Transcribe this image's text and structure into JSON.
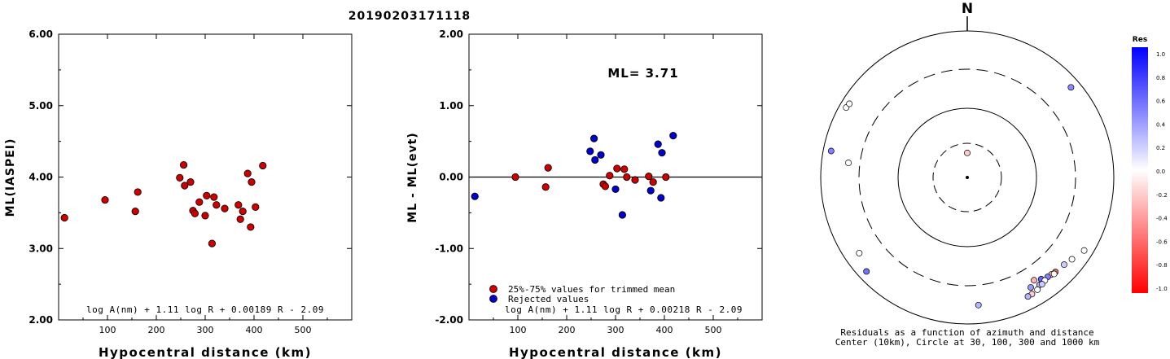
{
  "title": "20190203171118",
  "chart_data": [
    {
      "type": "scatter",
      "xlabel": "Hypocentral distance (km)",
      "ylabel": "ML(IASPEI)",
      "xlim": [
        0,
        600
      ],
      "ylim": [
        2.0,
        6.0
      ],
      "xticks": [
        "100",
        "200",
        "300",
        "400",
        "500"
      ],
      "yticks": [
        "2.00",
        "3.00",
        "4.00",
        "5.00",
        "6.00"
      ],
      "formula": "log A(nm) + 1.11 log R + 0.00189 R - 2.09",
      "marker_color": "#cc0000",
      "points": [
        [
          12,
          3.43
        ],
        [
          95,
          3.68
        ],
        [
          157,
          3.52
        ],
        [
          162,
          3.79
        ],
        [
          248,
          3.99
        ],
        [
          256,
          4.17
        ],
        [
          258,
          3.88
        ],
        [
          270,
          3.93
        ],
        [
          275,
          3.53
        ],
        [
          279,
          3.49
        ],
        [
          288,
          3.65
        ],
        [
          300,
          3.46
        ],
        [
          303,
          3.74
        ],
        [
          314,
          3.07
        ],
        [
          318,
          3.72
        ],
        [
          323,
          3.61
        ],
        [
          340,
          3.56
        ],
        [
          368,
          3.61
        ],
        [
          372,
          3.41
        ],
        [
          377,
          3.52
        ],
        [
          387,
          4.05
        ],
        [
          393,
          3.3
        ],
        [
          395,
          3.93
        ],
        [
          403,
          3.58
        ],
        [
          418,
          4.16
        ]
      ]
    },
    {
      "type": "scatter",
      "xlabel": "Hypocentral distance (km)",
      "ylabel": "ML - ML(evt)",
      "xlim": [
        0,
        600
      ],
      "ylim": [
        -2.0,
        2.0
      ],
      "xticks": [
        "100",
        "200",
        "300",
        "400",
        "500"
      ],
      "yticks": [
        "-2.00",
        "-1.00",
        "0.00",
        "1.00",
        "2.00"
      ],
      "annotation": "ML= 3.71",
      "formula": "log A(nm) + 1.11 log R + 0.00218 R - 2.09",
      "legend": [
        {
          "label": "25%-75% values for trimmed mean",
          "color": "#cc0000"
        },
        {
          "label": "Rejected values",
          "color": "#0000cc"
        }
      ],
      "series": [
        {
          "name": "25%-75% values for trimmed mean",
          "color": "#cc0000",
          "points": [
            [
              95,
              0.0
            ],
            [
              157,
              -0.14
            ],
            [
              162,
              0.13
            ],
            [
              275,
              -0.1
            ],
            [
              279,
              -0.13
            ],
            [
              288,
              0.02
            ],
            [
              303,
              0.12
            ],
            [
              318,
              0.11
            ],
            [
              323,
              0.0
            ],
            [
              340,
              -0.04
            ],
            [
              368,
              0.01
            ],
            [
              377,
              -0.07
            ],
            [
              403,
              0.0
            ]
          ]
        },
        {
          "name": "Rejected values",
          "color": "#0000cc",
          "points": [
            [
              12,
              -0.27
            ],
            [
              248,
              0.36
            ],
            [
              256,
              0.54
            ],
            [
              258,
              0.24
            ],
            [
              270,
              0.31
            ],
            [
              300,
              -0.17
            ],
            [
              314,
              -0.53
            ],
            [
              372,
              -0.19
            ],
            [
              387,
              0.46
            ],
            [
              393,
              -0.29
            ],
            [
              395,
              0.34
            ],
            [
              418,
              0.58
            ]
          ]
        }
      ]
    },
    {
      "type": "scatter",
      "subtype": "polar",
      "north_label": "N",
      "caption_line1": "Residuals as a function of azimuth and distance",
      "caption_line2": "Center (10km), Circle at 30, 100, 300 and 1000 km",
      "rings_km": [
        30,
        100,
        300,
        1000
      ],
      "colorbar": {
        "title": "Res",
        "ticks": [
          "1.0",
          "0.8",
          "0.6",
          "0.4",
          "0.2",
          "0.0",
          "-0.2",
          "-0.4",
          "-0.6",
          "-0.8",
          "-1.0"
        ],
        "max_color": "#0000ff",
        "zero_color": "#ffffff",
        "min_color": "#ff0000"
      },
      "points": [
        {
          "azimuth_deg": 0,
          "distance_km": 22,
          "residual": -0.2
        },
        {
          "azimuth_deg": 277,
          "distance_km": 430,
          "residual": 0.0
        },
        {
          "azimuth_deg": 281,
          "distance_km": 780,
          "residual": 0.5
        },
        {
          "azimuth_deg": 300,
          "distance_km": 810,
          "residual": 0.0
        },
        {
          "azimuth_deg": 302,
          "distance_km": 790,
          "residual": 0.0
        },
        {
          "azimuth_deg": 49,
          "distance_km": 750,
          "residual": 0.45
        },
        {
          "azimuth_deg": 235,
          "distance_km": 630,
          "residual": 0.0
        },
        {
          "azimuth_deg": 227,
          "distance_km": 760,
          "residual": 0.55
        },
        {
          "azimuth_deg": 122,
          "distance_km": 760,
          "residual": 0.0
        },
        {
          "azimuth_deg": 128,
          "distance_km": 650,
          "residual": 0.0
        },
        {
          "azimuth_deg": 132,
          "distance_km": 600,
          "residual": 0.2
        },
        {
          "azimuth_deg": 137,
          "distance_km": 580,
          "residual": -0.6
        },
        {
          "azimuth_deg": 139,
          "distance_km": 565,
          "residual": -0.3
        },
        {
          "azimuth_deg": 141,
          "distance_km": 555,
          "residual": 0.5
        },
        {
          "azimuth_deg": 144,
          "distance_km": 520,
          "residual": 0.6
        },
        {
          "azimuth_deg": 146,
          "distance_km": 585,
          "residual": 0.3
        },
        {
          "azimuth_deg": 148,
          "distance_km": 640,
          "residual": 0.0
        },
        {
          "azimuth_deg": 151,
          "distance_km": 660,
          "residual": -0.2
        },
        {
          "azimuth_deg": 153,
          "distance_km": 665,
          "residual": 0.3
        },
        {
          "azimuth_deg": 150,
          "distance_km": 540,
          "residual": 0.4
        },
        {
          "azimuth_deg": 147,
          "distance_km": 470,
          "residual": -0.3
        },
        {
          "azimuth_deg": 175,
          "distance_km": 560,
          "residual": 0.3
        },
        {
          "azimuth_deg": 143,
          "distance_km": 575,
          "residual": 0.0
        },
        {
          "azimuth_deg": 145,
          "distance_km": 600,
          "residual": 0.2
        },
        {
          "azimuth_deg": 138,
          "distance_km": 590,
          "residual": 0.0
        }
      ]
    }
  ]
}
